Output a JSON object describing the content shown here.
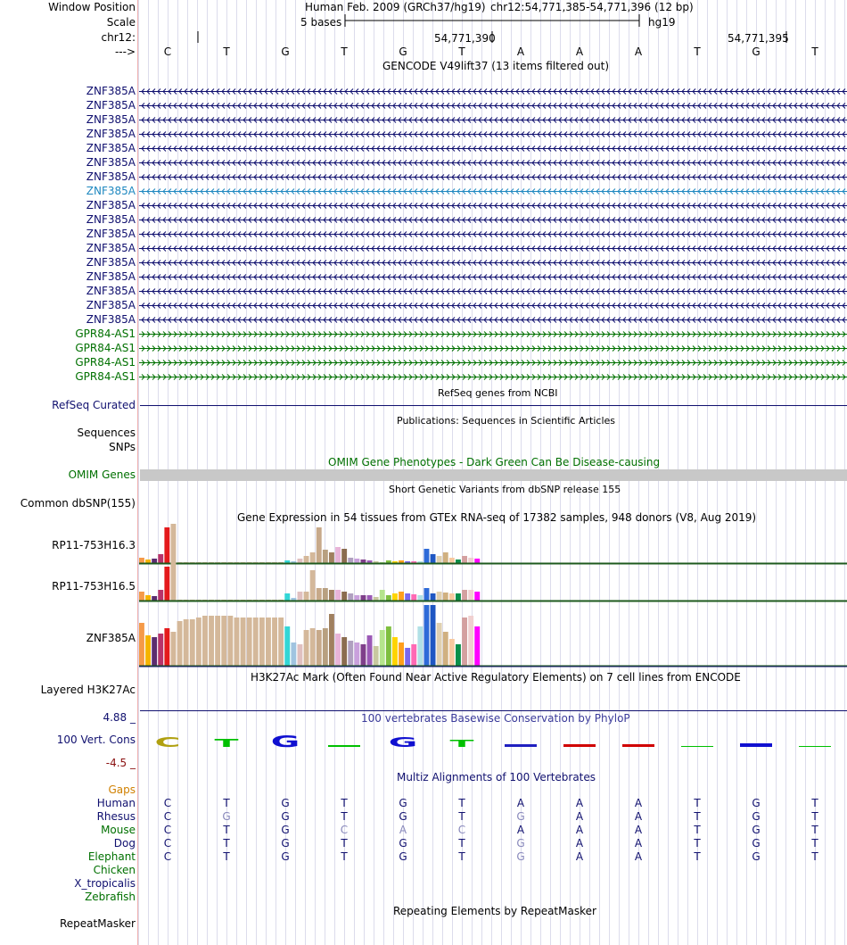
{
  "header": {
    "window_position_label": "Window Position",
    "scale_label": "Scale",
    "chrom_label": "chr12:",
    "strand_label": "--->",
    "assembly": "Human Feb. 2009 (GRCh37/hg19)",
    "position": "chr12:54,771,385-54,771,396 (12 bp)",
    "scale_text": "5 bases",
    "scale_db": "hg19",
    "coord_1": "54,771,390",
    "coord_2": "54,771,395"
  },
  "sequence": [
    "C",
    "T",
    "G",
    "T",
    "G",
    "T",
    "A",
    "A",
    "A",
    "T",
    "G",
    "T"
  ],
  "gencode": {
    "title": "GENCODE V49lift37 (13 items filtered out)",
    "znf_items": [
      "ZNF385A",
      "ZNF385A",
      "ZNF385A",
      "ZNF385A",
      "ZNF385A",
      "ZNF385A",
      "ZNF385A",
      "ZNF385A",
      "ZNF385A",
      "ZNF385A",
      "ZNF385A",
      "ZNF385A",
      "ZNF385A",
      "ZNF385A",
      "ZNF385A",
      "ZNF385A",
      "ZNF385A"
    ],
    "gpr_items": [
      "GPR84-AS1",
      "GPR84-AS1",
      "GPR84-AS1",
      "GPR84-AS1"
    ],
    "colors": {
      "navy": "#10106f",
      "highlight": "#1f88c0",
      "green": "#007000"
    }
  },
  "refseq": {
    "title": "RefSeq genes from NCBI",
    "label": "RefSeq Curated"
  },
  "publications": {
    "title": "Publications: Sequences in Scientific Articles",
    "label_1": "Sequences",
    "label_2": "SNPs"
  },
  "omim": {
    "title": "OMIM Gene Phenotypes - Dark Green Can Be Disease-causing",
    "label": "OMIM Genes"
  },
  "dbsnp": {
    "title": "Short Genetic Variants from dbSNP release 155",
    "label": "Common dbSNP(155)"
  },
  "gtex": {
    "title": "Gene Expression in 54 tissues from GTEx RNA-seq of 17382 samples, 948 donors (V8, Aug 2019)",
    "genes": [
      "RP11-753H16.3",
      "RP11-753H16.5",
      "ZNF385A"
    ]
  },
  "h3k27ac": {
    "title": "H3K27Ac Mark (Often Found Near Active Regulatory Elements) on 7 cell lines from ENCODE",
    "label": "Layered H3K27Ac"
  },
  "phylop": {
    "title": "100 vertebrates Basewise Conservation by PhyloP",
    "label": "100 Vert. Cons",
    "max": "4.88 _",
    "min": "-4.5 _"
  },
  "multiz": {
    "title": "Multiz Alignments of 100 Vertebrates",
    "gaps_label": "Gaps",
    "species": [
      {
        "name": "Human",
        "seq": "CTGTGTAAATGT",
        "color": "#10106f"
      },
      {
        "name": "Rhesus",
        "seq": "CGGTGTGAATGT",
        "color": "#10106f"
      },
      {
        "name": "Mouse",
        "seq": "CTGCACAAATGT",
        "color": "#007000"
      },
      {
        "name": "Dog",
        "seq": "CTGTGTGAATGT",
        "color": "#10106f"
      },
      {
        "name": "Elephant",
        "seq": "CTGTGTGAATGT",
        "color": "#007000"
      },
      {
        "name": "Chicken",
        "seq": "",
        "color": "#007000"
      },
      {
        "name": "X_tropicalis",
        "seq": "",
        "color": "#10106f"
      },
      {
        "name": "Zebrafish",
        "seq": "",
        "color": "#007000"
      }
    ]
  },
  "repeatmasker": {
    "title": "Repeating Elements by RepeatMasker",
    "label": "RepeatMasker"
  }
}
